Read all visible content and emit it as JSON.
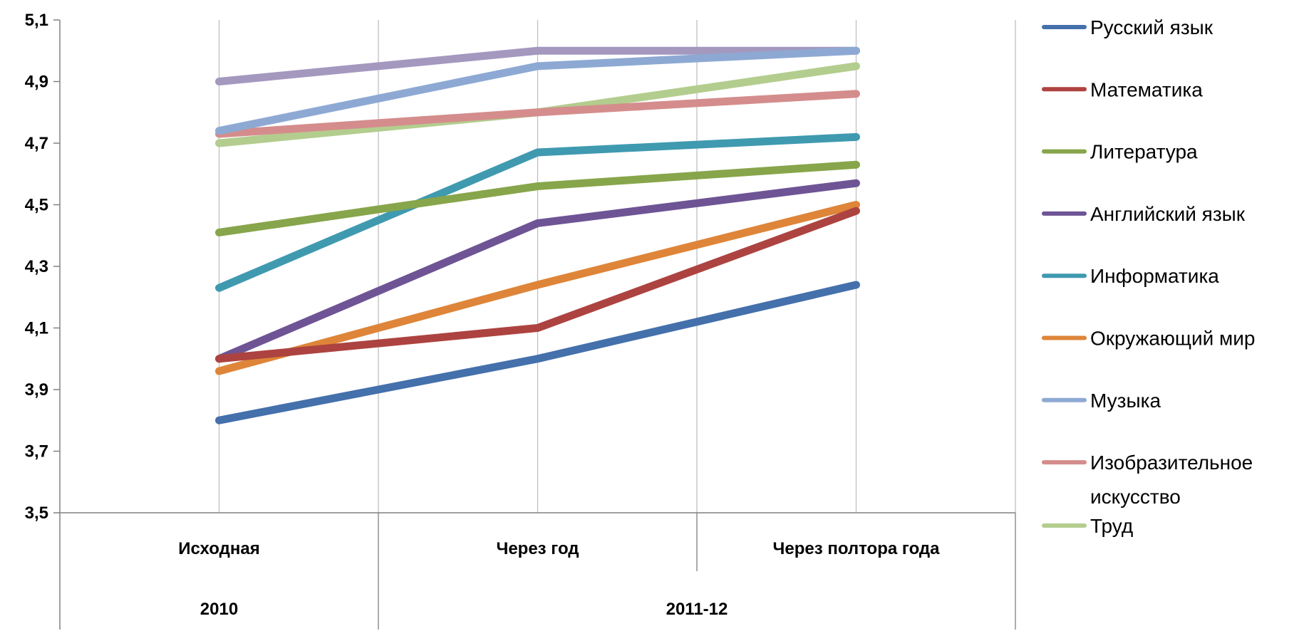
{
  "chart_data": {
    "type": "line",
    "categories": [
      "Исходная",
      "Через год",
      "Через полтора года"
    ],
    "category_groups": [
      "2010",
      "2011-12"
    ],
    "ylim": [
      3.5,
      5.1
    ],
    "yticks": [
      "5,1",
      "4,9",
      "4,7",
      "4,5",
      "4,3",
      "4,1",
      "3,9",
      "3,7",
      "3,5"
    ],
    "grid": "vertical",
    "legend_position": "right",
    "series": [
      {
        "name": "Русский язык",
        "color": "#4470AB",
        "values": [
          3.8,
          4.0,
          4.24
        ]
      },
      {
        "name": "Математика",
        "color": "#AD4340",
        "values": [
          4.0,
          4.1,
          4.48
        ]
      },
      {
        "name": "Литература",
        "color": "#87A54A",
        "values": [
          4.41,
          4.56,
          4.63
        ]
      },
      {
        "name": "Английский язык",
        "color": "#6E5495",
        "values": [
          4.0,
          4.44,
          4.57
        ]
      },
      {
        "name": "Информатика",
        "color": "#3F9AB0",
        "values": [
          4.23,
          4.67,
          4.72
        ]
      },
      {
        "name": "Окружающий мир",
        "color": "#DE8539",
        "values": [
          3.96,
          4.24,
          4.5
        ]
      },
      {
        "name": "Музыка",
        "color": "#8DA9D3",
        "values": [
          4.74,
          4.95,
          5.0
        ]
      },
      {
        "name": "Изобразительное искусство",
        "name_lines": [
          "Изобразительное",
          "искусство"
        ],
        "color": "#D48D8C",
        "values": [
          4.73,
          4.8,
          4.86
        ]
      },
      {
        "name": "Труд",
        "color": "#B3CD8E",
        "values": [
          4.7,
          4.8,
          4.95
        ]
      },
      {
        "name": "",
        "color": "#A498BF",
        "values": [
          4.9,
          5.0,
          5.0
        ]
      }
    ]
  }
}
